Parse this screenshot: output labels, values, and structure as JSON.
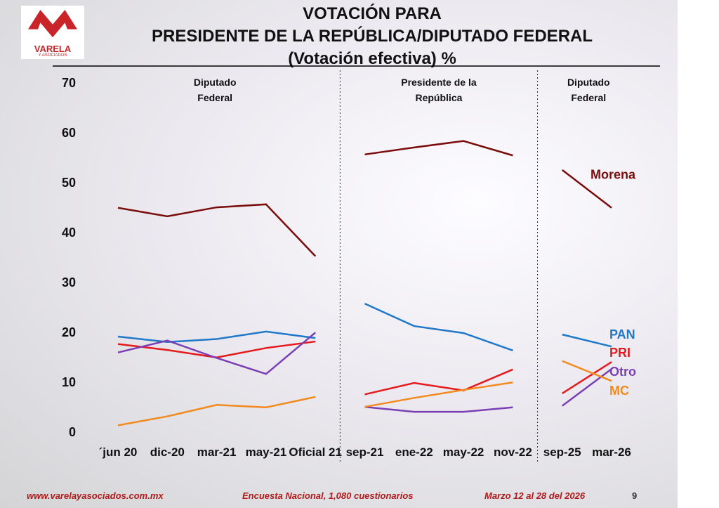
{
  "chart_data": {
    "type": "line",
    "title": [
      "VOTACIÓN PARA",
      "PRESIDENTE DE LA REPÚBLICA/DIPUTADO FEDERAL",
      "(Votación efectiva) %"
    ],
    "group_labels": [
      "Diputado Federal",
      "Presidente de la República",
      "Diputado Federal"
    ],
    "categories": [
      "´jun 20",
      "dic-20",
      "mar-21",
      "may-21",
      "Oficial 21",
      null,
      "sep-21",
      "ene-22",
      "may-22",
      "nov-22",
      null,
      "sep-25",
      "mar-26"
    ],
    "series": [
      {
        "name": "Morena",
        "color": "#7b0c0c",
        "values": [
          45.1,
          43.4,
          45.2,
          45.8,
          35.4,
          null,
          55.8,
          57.2,
          58.5,
          55.6,
          null,
          52.7,
          45.1
        ]
      },
      {
        "name": "PAN",
        "color": "#1f78c8",
        "values": [
          19.3,
          18.2,
          18.8,
          20.3,
          19.0,
          null,
          25.9,
          21.4,
          20.0,
          16.5,
          null,
          19.7,
          17.3
        ]
      },
      {
        "name": "PRI",
        "color": "#e41a1c",
        "values": [
          17.8,
          16.6,
          15.1,
          17.0,
          18.3,
          null,
          7.7,
          10.0,
          8.5,
          12.7,
          null,
          7.9,
          14.2
        ]
      },
      {
        "name": "Otro",
        "color": "#7b3fb5",
        "values": [
          16.1,
          18.5,
          15.0,
          11.8,
          20.1,
          null,
          5.2,
          4.2,
          4.2,
          5.1,
          null,
          5.4,
          12.8
        ]
      },
      {
        "name": "MC",
        "color": "#f28a1e",
        "values": [
          1.5,
          3.3,
          5.6,
          5.1,
          7.2,
          null,
          5.2,
          7.0,
          8.6,
          10.1,
          null,
          14.4,
          10.4
        ]
      }
    ],
    "ylim": [
      0,
      70
    ],
    "yticks": [
      0,
      10,
      20,
      30,
      40,
      50,
      60,
      70
    ],
    "grid": false
  },
  "logo": {
    "name": "VARELA",
    "subtitle": "Y ASOCIADOS"
  },
  "footer": {
    "website": "www.varelayasociados.com.mx",
    "survey": "Encuesta Nacional, 1,080 cuestionarios",
    "dates": "Marzo 12 al 28 del 2026",
    "page": "9"
  }
}
